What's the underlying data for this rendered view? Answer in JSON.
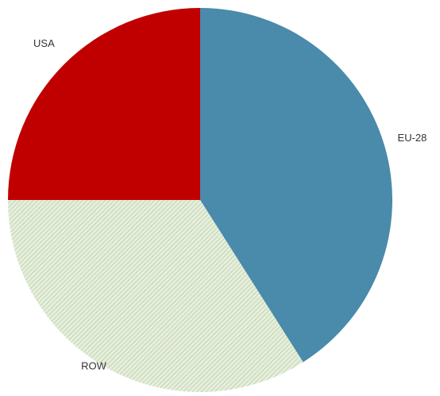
{
  "chart_data": {
    "type": "pie",
    "categories": [
      "EU-28",
      "ROW",
      "USA"
    ],
    "values": [
      41,
      34,
      25
    ],
    "colors": [
      "#4a8aab",
      "#dfe9d3",
      "#c00000"
    ],
    "hatched": [
      false,
      true,
      false
    ]
  }
}
